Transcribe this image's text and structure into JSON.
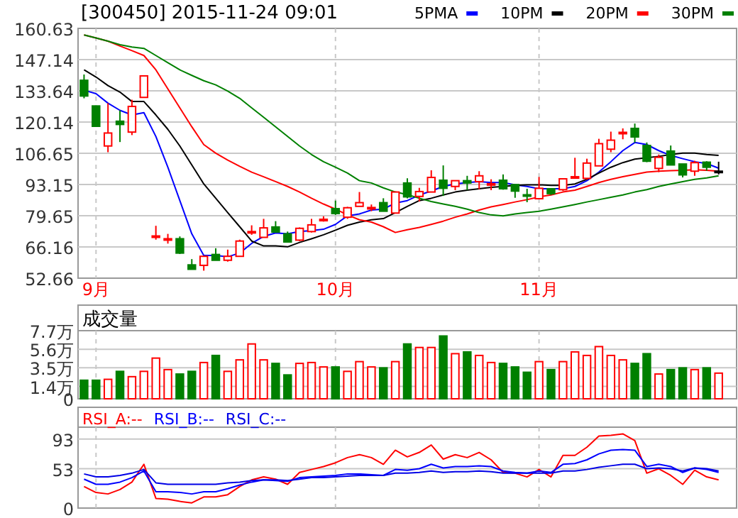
{
  "chart_data": [
    {
      "type": "candlestick",
      "title": "[300450] 2015-11-24 09:01",
      "categories": [
        null,
        "9月",
        null,
        null,
        null,
        null,
        null,
        null,
        null,
        null,
        null,
        null,
        null,
        null,
        null,
        null,
        null,
        null,
        null,
        null,
        null,
        "10月",
        null,
        null,
        null,
        null,
        null,
        null,
        null,
        null,
        null,
        null,
        null,
        null,
        null,
        null,
        null,
        null,
        "11月",
        null,
        null,
        null,
        null,
        null,
        null,
        null,
        null,
        null,
        null,
        null,
        null,
        null,
        null,
        null
      ],
      "ohlc": [
        [
          138.2,
          140.7,
          130.4,
          131.4
        ],
        [
          127.1,
          127.1,
          118.3,
          118.3
        ],
        [
          109.8,
          128.3,
          107.1,
          115.4
        ],
        [
          120.5,
          125.2,
          111.5,
          119.1
        ],
        [
          115.8,
          129.8,
          114.5,
          126.9
        ],
        [
          130.8,
          140.1,
          130.8,
          140.1
        ],
        [
          70.5,
          75.3,
          69.3,
          70.9
        ],
        [
          69.5,
          71.8,
          67.6,
          69.7
        ],
        [
          69.7,
          70.7,
          63.1,
          63.5
        ],
        [
          58.4,
          60.9,
          56.5,
          56.5
        ],
        [
          58.2,
          62.1,
          55.9,
          62.1
        ],
        [
          62.9,
          65.6,
          60.4,
          60.4
        ],
        [
          60.4,
          65.0,
          59.8,
          62.1
        ],
        [
          62.1,
          69.3,
          62.1,
          68.7
        ],
        [
          72.6,
          75.5,
          71.4,
          72.8
        ],
        [
          70.3,
          78.3,
          70.3,
          74.4
        ],
        [
          74.8,
          77.3,
          72.6,
          72.6
        ],
        [
          71.8,
          72.8,
          68.3,
          68.3
        ],
        [
          69.1,
          74.6,
          68.7,
          74.2
        ],
        [
          72.8,
          78.3,
          72.4,
          75.7
        ],
        [
          77.9,
          79.4,
          77.1,
          78.1
        ],
        [
          82.7,
          86.2,
          80.0,
          80.6
        ],
        [
          79.0,
          83.5,
          78.3,
          83.1
        ],
        [
          83.7,
          89.9,
          83.7,
          85.3
        ],
        [
          83.0,
          84.5,
          81.6,
          83.2
        ],
        [
          85.3,
          87.2,
          81.6,
          81.6
        ],
        [
          80.8,
          89.9,
          80.8,
          89.9
        ],
        [
          93.8,
          95.8,
          87.2,
          87.8
        ],
        [
          88.0,
          91.7,
          85.8,
          90.1
        ],
        [
          89.9,
          99.3,
          89.9,
          96.2
        ],
        [
          95.0,
          101.4,
          88.2,
          91.5
        ],
        [
          92.3,
          94.8,
          90.7,
          94.8
        ],
        [
          94.8,
          96.9,
          90.7,
          93.8
        ],
        [
          94.4,
          98.9,
          91.1,
          96.9
        ],
        [
          93.3,
          95.4,
          90.7,
          93.5
        ],
        [
          95.0,
          97.5,
          90.9,
          91.3
        ],
        [
          93.1,
          93.1,
          87.4,
          90.3
        ],
        [
          88.7,
          91.3,
          85.5,
          88.5
        ],
        [
          87.0,
          96.4,
          87.0,
          91.5
        ],
        [
          91.3,
          91.3,
          88.6,
          89.2
        ],
        [
          90.9,
          95.6,
          90.3,
          95.6
        ],
        [
          96.3,
          104.7,
          96.0,
          96.5
        ],
        [
          95.8,
          104.3,
          95.2,
          102.4
        ],
        [
          101.2,
          112.9,
          101.2,
          110.8
        ],
        [
          108.4,
          116.0,
          107.1,
          112.3
        ],
        [
          115.5,
          117.4,
          112.7,
          115.7
        ],
        [
          117.4,
          119.5,
          111.3,
          113.7
        ],
        [
          110.0,
          111.3,
          102.8,
          103.2
        ],
        [
          100.1,
          106.1,
          98.5,
          104.9
        ],
        [
          107.6,
          110.0,
          101.6,
          101.6
        ],
        [
          102.0,
          102.0,
          96.2,
          97.3
        ],
        [
          98.9,
          103.4,
          96.9,
          102.6
        ],
        [
          102.8,
          103.2,
          99.1,
          100.6
        ],
        [
          98.9,
          103.0,
          97.5,
          98.9
        ]
      ],
      "colors": [
        "#008000",
        "#008000",
        "#ff0000",
        "#008000",
        "#ff0000",
        "#ff0000",
        "#ff0000",
        "#ff0000",
        "#008000",
        "#008000",
        "#ff0000",
        "#008000",
        "#ff0000",
        "#ff0000",
        "#ff0000",
        "#ff0000",
        "#008000",
        "#008000",
        "#ff0000",
        "#ff0000",
        "#ff0000",
        "#008000",
        "#ff0000",
        "#ff0000",
        "#ff0000",
        "#008000",
        "#ff0000",
        "#008000",
        "#ff0000",
        "#ff0000",
        "#008000",
        "#ff0000",
        "#008000",
        "#ff0000",
        "#ff0000",
        "#008000",
        "#008000",
        "#008000",
        "#ff0000",
        "#008000",
        "#ff0000",
        "#ff0000",
        "#ff0000",
        "#ff0000",
        "#ff0000",
        "#ff0000",
        "#008000",
        "#008000",
        "#ff0000",
        "#008000",
        "#008000",
        "#ff0000",
        "#008000",
        "#000000"
      ],
      "series": [
        {
          "name": "5PMA",
          "type": "line",
          "color": "#0000ff",
          "values": [
            133.9,
            132.4,
            128.3,
            125.2,
            123.2,
            124.2,
            113.9,
            100.6,
            86.2,
            71.8,
            62.5,
            62.5,
            61.9,
            63.5,
            67.7,
            70.7,
            72.2,
            71.8,
            72.8,
            73.2,
            73.8,
            75.9,
            79.6,
            80.4,
            82.1,
            82.5,
            85.1,
            86.2,
            88.6,
            90.3,
            92.3,
            93.4,
            94.0,
            94.4,
            94.0,
            94.0,
            93.0,
            92.3,
            91.3,
            91.3,
            91.3,
            92.3,
            94.8,
            98.5,
            103.0,
            107.8,
            111.3,
            110.4,
            107.8,
            105.7,
            104.3,
            103.0,
            102.2,
            100.2
          ]
        },
        {
          "name": "10PM",
          "type": "line",
          "color": "#000000",
          "values": [
            142.7,
            139.6,
            135.9,
            133.1,
            129.0,
            129.0,
            123.2,
            117.0,
            109.8,
            101.6,
            93.4,
            87.2,
            81.0,
            74.9,
            68.7,
            66.6,
            66.6,
            66.2,
            68.1,
            69.7,
            71.4,
            73.4,
            75.5,
            76.9,
            77.9,
            78.4,
            81.0,
            83.7,
            86.2,
            87.2,
            88.6,
            89.9,
            90.7,
            91.3,
            91.9,
            92.3,
            92.8,
            93.0,
            93.0,
            92.8,
            92.8,
            93.4,
            95.4,
            98.1,
            100.6,
            102.6,
            104.1,
            104.7,
            105.3,
            106.1,
            106.7,
            106.7,
            106.1,
            105.7
          ]
        },
        {
          "name": "20PM",
          "type": "line",
          "color": "#ff0000",
          "values": [
            157.8,
            156.5,
            155.1,
            153.0,
            151.0,
            148.9,
            142.7,
            134.5,
            126.3,
            118.1,
            110.4,
            106.7,
            103.7,
            101.0,
            98.5,
            96.5,
            94.4,
            92.3,
            89.9,
            87.2,
            84.7,
            82.5,
            80.0,
            77.9,
            76.9,
            74.9,
            72.4,
            73.6,
            74.6,
            75.9,
            77.3,
            79.0,
            80.4,
            82.1,
            83.5,
            84.5,
            85.6,
            86.6,
            87.8,
            88.6,
            89.9,
            90.7,
            92.3,
            94.0,
            95.4,
            96.5,
            97.5,
            98.5,
            98.9,
            99.1,
            99.3,
            99.5,
            99.3,
            98.9
          ]
        },
        {
          "name": "30PM",
          "type": "line",
          "color": "#008000",
          "values": [
            157.8,
            156.5,
            155.1,
            153.6,
            152.6,
            152.0,
            148.9,
            145.8,
            142.7,
            140.3,
            138.0,
            136.2,
            133.5,
            130.4,
            126.3,
            122.2,
            118.1,
            113.9,
            109.8,
            106.1,
            103.0,
            100.6,
            98.1,
            94.8,
            93.8,
            91.7,
            89.9,
            88.8,
            87.2,
            85.8,
            84.7,
            83.7,
            82.5,
            81.0,
            80.0,
            79.6,
            80.4,
            81.0,
            81.6,
            82.5,
            83.5,
            84.5,
            85.6,
            86.6,
            87.6,
            88.6,
            89.9,
            90.9,
            92.3,
            93.4,
            94.4,
            95.4,
            96.0,
            96.9
          ]
        }
      ],
      "ylim": [
        52.66,
        160.63
      ],
      "yticks": [
        52.66,
        66.16,
        79.65,
        93.15,
        106.65,
        120.14,
        133.64,
        147.14,
        160.63
      ],
      "grid": true,
      "legend": "top right"
    },
    {
      "type": "bar",
      "title": "成交量",
      "categories": [
        null,
        null,
        null,
        null,
        null,
        null,
        null,
        null,
        null,
        null,
        null,
        null,
        null,
        null,
        null,
        null,
        null,
        null,
        null,
        null,
        null,
        null,
        null,
        null,
        null,
        null,
        null,
        null,
        null,
        null,
        null,
        null,
        null,
        null,
        null,
        null,
        null,
        null,
        null,
        null,
        null,
        null,
        null,
        null,
        null,
        null,
        null,
        null,
        null,
        null,
        null,
        null,
        null,
        null
      ],
      "values": [
        2.1,
        2.1,
        2.2,
        3.1,
        2.5,
        3.1,
        4.6,
        3.3,
        2.8,
        3.1,
        4.1,
        4.9,
        3.1,
        4.4,
        6.2,
        4.4,
        4.0,
        2.7,
        4.0,
        4.1,
        3.6,
        3.6,
        3.1,
        4.2,
        3.6,
        3.5,
        4.2,
        6.2,
        5.8,
        5.8,
        7.1,
        5.1,
        5.3,
        4.9,
        4.1,
        4.0,
        3.6,
        3.0,
        4.2,
        3.3,
        4.2,
        5.3,
        4.9,
        5.9,
        4.9,
        4.4,
        4.0,
        5.1,
        2.8,
        3.3,
        3.5,
        3.3,
        3.5,
        2.9
      ],
      "colors": [
        "#008000",
        "#008000",
        "#ff0000",
        "#008000",
        "#ff0000",
        "#ff0000",
        "#ff0000",
        "#ff0000",
        "#008000",
        "#008000",
        "#ff0000",
        "#008000",
        "#ff0000",
        "#ff0000",
        "#ff0000",
        "#ff0000",
        "#008000",
        "#008000",
        "#ff0000",
        "#ff0000",
        "#ff0000",
        "#008000",
        "#ff0000",
        "#ff0000",
        "#ff0000",
        "#008000",
        "#ff0000",
        "#008000",
        "#ff0000",
        "#ff0000",
        "#008000",
        "#ff0000",
        "#008000",
        "#ff0000",
        "#ff0000",
        "#008000",
        "#008000",
        "#008000",
        "#ff0000",
        "#008000",
        "#ff0000",
        "#ff0000",
        "#ff0000",
        "#ff0000",
        "#ff0000",
        "#ff0000",
        "#008000",
        "#008000",
        "#ff0000",
        "#008000",
        "#008000",
        "#ff0000",
        "#008000",
        "#ff0000"
      ],
      "ylim": [
        0,
        7.7
      ],
      "yticks": [
        0,
        {
          "value": 1.4,
          "label": "1.4万"
        },
        {
          "value": 3.5,
          "label": "3.5万"
        },
        {
          "value": 5.6,
          "label": "5.6万"
        },
        {
          "value": 7.7,
          "label": "7.7万"
        }
      ],
      "grid": true,
      "tick_labels": "y"
    },
    {
      "type": "line",
      "categories": [
        null,
        null,
        null,
        null,
        null,
        null,
        null,
        null,
        null,
        null,
        null,
        null,
        null,
        null,
        null,
        null,
        null,
        null,
        null,
        null,
        null,
        null,
        null,
        null,
        null,
        null,
        null,
        null,
        null,
        null,
        null,
        null,
        null,
        null,
        null,
        null,
        null,
        null,
        null,
        null,
        null,
        null,
        null,
        null,
        null,
        null,
        null,
        null,
        null,
        null,
        null,
        null,
        null,
        null
      ],
      "series": [
        {
          "name": "RSI_A:--",
          "color": "#ff0000",
          "values": [
            29,
            21,
            19,
            25,
            35,
            59,
            13,
            12,
            9,
            7,
            15,
            15,
            18,
            29,
            38,
            42,
            39,
            32,
            48,
            52,
            56,
            61,
            68,
            72,
            68,
            59,
            78,
            69,
            75,
            85,
            66,
            72,
            68,
            75,
            65,
            48,
            47,
            42,
            52,
            42,
            71,
            71,
            82,
            97,
            98,
            100,
            91,
            47,
            53,
            44,
            32,
            51,
            42,
            38
          ]
        },
        {
          "name": "RSI_B:--",
          "color": "#0000ff",
          "values": [
            39,
            32,
            32,
            35,
            41,
            50,
            22,
            22,
            21,
            19,
            22,
            22,
            26,
            31,
            35,
            38,
            37,
            36,
            41,
            42,
            43,
            44,
            46,
            46,
            45,
            44,
            52,
            51,
            53,
            59,
            54,
            56,
            56,
            57,
            56,
            50,
            48,
            47,
            50,
            48,
            59,
            60,
            65,
            73,
            78,
            79,
            78,
            56,
            59,
            56,
            48,
            54,
            52,
            48
          ]
        },
        {
          "name": "RSI_C:--",
          "color": "#0000e6",
          "values": [
            46,
            42,
            42,
            44,
            47,
            52,
            34,
            32,
            32,
            32,
            32,
            32,
            34,
            35,
            37,
            38,
            38,
            37,
            39,
            41,
            41,
            42,
            43,
            44,
            44,
            44,
            47,
            47,
            48,
            50,
            48,
            49,
            49,
            50,
            49,
            47,
            47,
            47,
            47,
            47,
            50,
            50,
            52,
            55,
            57,
            59,
            59,
            53,
            54,
            53,
            50,
            54,
            53,
            50
          ]
        }
      ],
      "ylim": [
        0,
        109
      ],
      "yticks": [
        0,
        53,
        93
      ],
      "grid": true,
      "legend": "top left",
      "tick_labels": "y"
    }
  ]
}
